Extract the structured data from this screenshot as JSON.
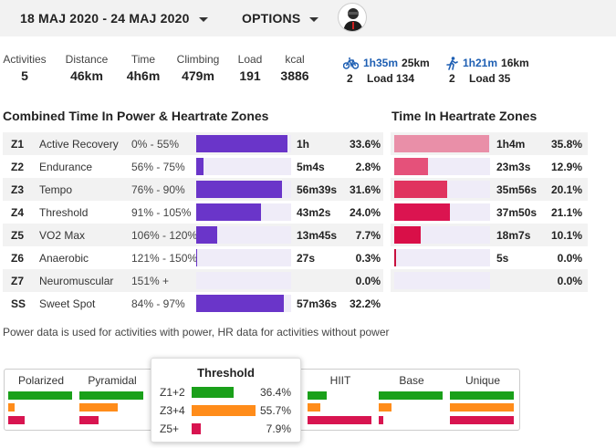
{
  "header": {
    "date_range": "18 MAJ 2020 - 24 MAJ 2020",
    "options_label": "OPTIONS"
  },
  "stats": [
    {
      "label": "Activities",
      "value": "5"
    },
    {
      "label": "Distance",
      "value": "46km"
    },
    {
      "label": "Time",
      "value": "4h6m"
    },
    {
      "label": "Climbing",
      "value": "479m"
    },
    {
      "label": "Load",
      "value": "191"
    },
    {
      "label": "kcal",
      "value": "3886"
    }
  ],
  "sports": [
    {
      "icon": "bike-icon",
      "time": "1h35m",
      "distance": "25km",
      "count": "2",
      "load": "Load 134"
    },
    {
      "icon": "run-icon",
      "time": "1h21m",
      "distance": "16km",
      "count": "2",
      "load": "Load 35"
    }
  ],
  "combined": {
    "title": "Combined Time In Power & Heartrate Zones",
    "bar_color": "#6a35c9",
    "rows": [
      {
        "code": "Z1",
        "name": "Active Recovery",
        "range": "0% - 55%",
        "time": "1h",
        "pct": "33.6%",
        "fraction": 0.336
      },
      {
        "code": "Z2",
        "name": "Endurance",
        "range": "56% - 75%",
        "time": "5m4s",
        "pct": "2.8%",
        "fraction": 0.028
      },
      {
        "code": "Z3",
        "name": "Tempo",
        "range": "76% - 90%",
        "time": "56m39s",
        "pct": "31.6%",
        "fraction": 0.316
      },
      {
        "code": "Z4",
        "name": "Threshold",
        "range": "91% - 105%",
        "time": "43m2s",
        "pct": "24.0%",
        "fraction": 0.24
      },
      {
        "code": "Z5",
        "name": "VO2 Max",
        "range": "106% - 120%",
        "time": "13m45s",
        "pct": "7.7%",
        "fraction": 0.077
      },
      {
        "code": "Z6",
        "name": "Anaerobic",
        "range": "121% - 150%",
        "time": "27s",
        "pct": "0.3%",
        "fraction": 0.003
      },
      {
        "code": "Z7",
        "name": "Neuromuscular",
        "range": "151% +",
        "time": "",
        "pct": "0.0%",
        "fraction": 0.0
      },
      {
        "code": "SS",
        "name": "Sweet Spot",
        "range": "84% - 97%",
        "time": "57m36s",
        "pct": "32.2%",
        "fraction": 0.322
      }
    ]
  },
  "heartrate": {
    "title": "Time In Heartrate Zones",
    "rows": [
      {
        "time": "1h4m",
        "pct": "35.8%",
        "fraction": 0.358,
        "color": "#e98fa8"
      },
      {
        "time": "23m3s",
        "pct": "12.9%",
        "fraction": 0.129,
        "color": "#e5517a"
      },
      {
        "time": "35m56s",
        "pct": "20.1%",
        "fraction": 0.201,
        "color": "#e0335f"
      },
      {
        "time": "37m50s",
        "pct": "21.1%",
        "fraction": 0.211,
        "color": "#db1450"
      },
      {
        "time": "18m7s",
        "pct": "10.1%",
        "fraction": 0.101,
        "color": "#d90f48"
      },
      {
        "time": "5s",
        "pct": "0.0%",
        "fraction": 0.0,
        "color": "#c8103e"
      },
      {
        "time": "",
        "pct": "0.0%",
        "fraction": 0.0,
        "color": "#c8103e"
      }
    ]
  },
  "note": "Power data is used for activities with power, HR data for activities without power",
  "distribution": {
    "colors": [
      "#1aa01a",
      "#ff8c1a",
      "#d81450"
    ],
    "models": [
      {
        "name": "Polarized",
        "fractions": [
          1.0,
          0.1,
          0.25
        ]
      },
      {
        "name": "Pyramidal",
        "fractions": [
          1.0,
          0.6,
          0.3
        ]
      },
      {
        "name": "HIIT",
        "fractions": [
          0.3,
          0.2,
          1.0
        ]
      },
      {
        "name": "Base",
        "fractions": [
          1.0,
          0.2,
          0.07
        ]
      },
      {
        "name": "Unique",
        "fractions": [
          1.0,
          1.0,
          1.0
        ]
      }
    ],
    "highlight": {
      "name": "Threshold",
      "rows": [
        {
          "label": "Z1+2",
          "pct": "36.4%",
          "fraction": 0.364
        },
        {
          "label": "Z3+4",
          "pct": "55.7%",
          "fraction": 0.557
        },
        {
          "label": "Z5+",
          "pct": "7.9%",
          "fraction": 0.079
        }
      ]
    }
  }
}
